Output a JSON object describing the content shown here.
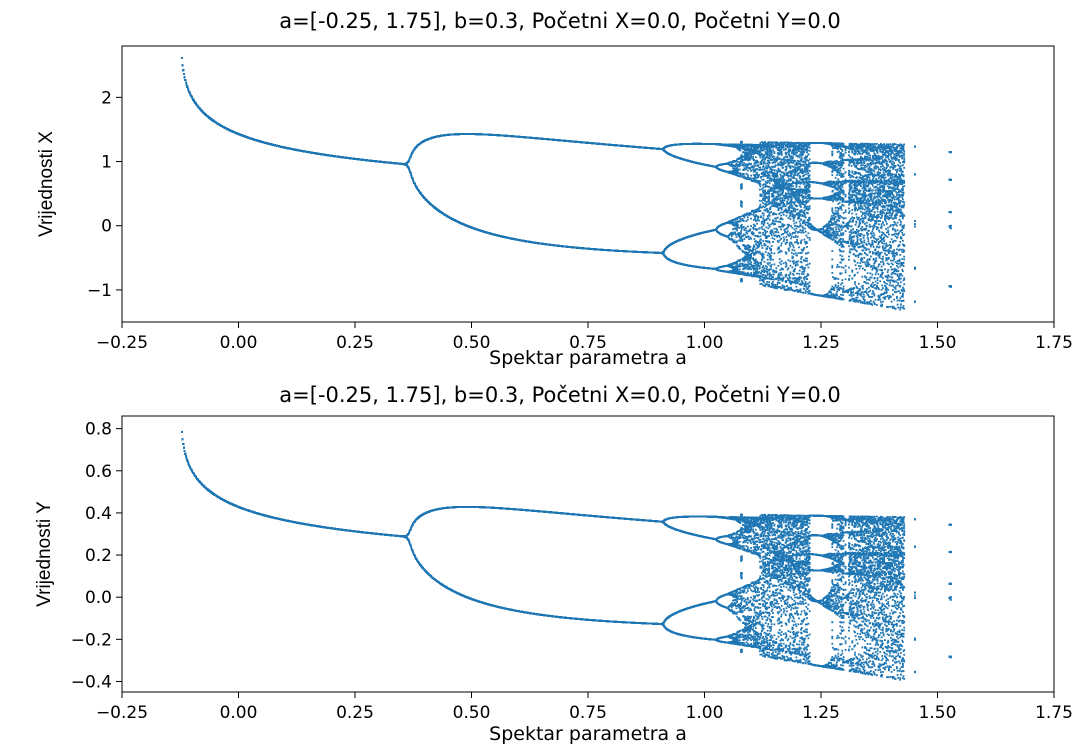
{
  "chart_data": [
    {
      "type": "scatter",
      "title": "a=[-0.25, 1.75], b=0.3, Početni X=0.0, Početni Y=0.0",
      "xlabel": "Spektar parametra a",
      "ylabel": "Vrijednosti X",
      "xlim": [
        -0.25,
        1.75
      ],
      "ylim": [
        -1.5,
        2.8
      ],
      "xticks": [
        "−0.25",
        "0.00",
        "0.25",
        "0.50",
        "0.75",
        "1.00",
        "1.25",
        "1.50",
        "1.75"
      ],
      "yticks": [
        "2",
        "1",
        "0",
        "−1"
      ],
      "xtick_values": [
        -0.25,
        0,
        0.25,
        0.5,
        0.75,
        1.0,
        1.25,
        1.5,
        1.75
      ],
      "ytick_values": [
        2,
        1,
        0,
        -1
      ],
      "grid": false,
      "legend": "none",
      "series": [
        {
          "color": "#1f77b4",
          "map": "henon",
          "parameter_b": 0.3,
          "a_range": [
            -0.25,
            1.75
          ],
          "initial_x": 0.0,
          "initial_y": 0.0,
          "component": "x"
        }
      ]
    },
    {
      "type": "scatter",
      "title": "a=[-0.25, 1.75], b=0.3, Početni X=0.0, Početni Y=0.0",
      "xlabel": "Spektar parametra a",
      "ylabel": "Vrijednosti Y",
      "xlim": [
        -0.25,
        1.75
      ],
      "ylim": [
        -0.45,
        0.86
      ],
      "xticks": [
        "−0.25",
        "0.00",
        "0.25",
        "0.50",
        "0.75",
        "1.00",
        "1.25",
        "1.50",
        "1.75"
      ],
      "yticks": [
        "0.8",
        "0.6",
        "0.4",
        "0.2",
        "0.0",
        "−0.2",
        "−0.4"
      ],
      "xtick_values": [
        -0.25,
        0,
        0.25,
        0.5,
        0.75,
        1.0,
        1.25,
        1.5,
        1.75
      ],
      "ytick_values": [
        0.8,
        0.6,
        0.4,
        0.2,
        0.0,
        -0.2,
        -0.4
      ],
      "grid": false,
      "legend": "none",
      "series": [
        {
          "color": "#1f77b4",
          "map": "henon",
          "parameter_b": 0.3,
          "a_range": [
            -0.25,
            1.75
          ],
          "initial_x": 0.0,
          "initial_y": 0.0,
          "component": "y"
        }
      ]
    }
  ]
}
